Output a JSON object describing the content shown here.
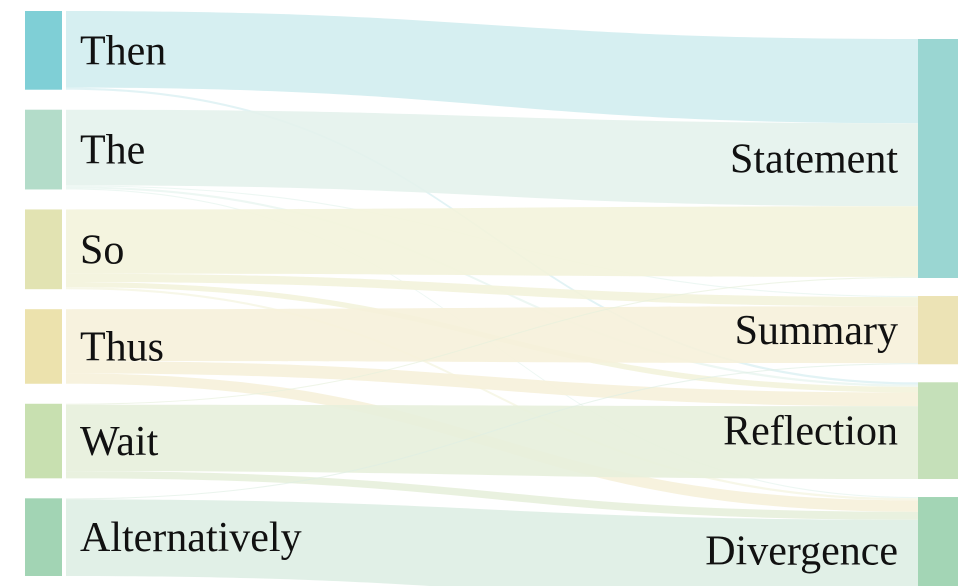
{
  "chart_data": {
    "type": "sankey",
    "sources": [
      {
        "id": "then",
        "label": "Then",
        "color": "#7fcfd6",
        "light": "#d2edf0"
      },
      {
        "id": "the",
        "label": "The",
        "color": "#b3dcc9",
        "light": "#e4f2ec"
      },
      {
        "id": "so",
        "label": "So",
        "color": "#e2e3b2",
        "light": "#f3f3dc"
      },
      {
        "id": "thus",
        "label": "Thus",
        "color": "#ece2ad",
        "light": "#f6f1da"
      },
      {
        "id": "wait",
        "label": "Wait",
        "color": "#c8e0b0",
        "light": "#e7efdc"
      },
      {
        "id": "alternatively",
        "label": "Alternatively",
        "color": "#a2d4b4",
        "light": "#deeee4"
      }
    ],
    "targets": [
      {
        "id": "statement",
        "label": "Statement",
        "color": "#9ad6d2"
      },
      {
        "id": "summary",
        "label": "Summary",
        "color": "#ece3b5"
      },
      {
        "id": "reflection",
        "label": "Reflection",
        "color": "#c5e0b9"
      },
      {
        "id": "divergence",
        "label": "Divergence",
        "color": "#a3d5b5"
      }
    ],
    "links": [
      {
        "source": "then",
        "target": "statement",
        "value": 74
      },
      {
        "source": "then",
        "target": "reflection",
        "value": 2
      },
      {
        "source": "the",
        "target": "statement",
        "value": 73
      },
      {
        "source": "the",
        "target": "summary",
        "value": 1
      },
      {
        "source": "the",
        "target": "reflection",
        "value": 2
      },
      {
        "source": "the",
        "target": "divergence",
        "value": 1
      },
      {
        "source": "so",
        "target": "statement",
        "value": 62
      },
      {
        "source": "so",
        "target": "summary",
        "value": 8
      },
      {
        "source": "so",
        "target": "reflection",
        "value": 5
      },
      {
        "source": "so",
        "target": "divergence",
        "value": 2
      },
      {
        "source": "thus",
        "target": "summary",
        "value": 50
      },
      {
        "source": "thus",
        "target": "reflection",
        "value": 12
      },
      {
        "source": "thus",
        "target": "divergence",
        "value": 10
      },
      {
        "source": "wait",
        "target": "statement",
        "value": 1
      },
      {
        "source": "wait",
        "target": "reflection",
        "value": 64
      },
      {
        "source": "wait",
        "target": "divergence",
        "value": 7
      },
      {
        "source": "alternatively",
        "target": "summary",
        "value": 1
      },
      {
        "source": "alternatively",
        "target": "divergence",
        "value": 74
      }
    ]
  }
}
